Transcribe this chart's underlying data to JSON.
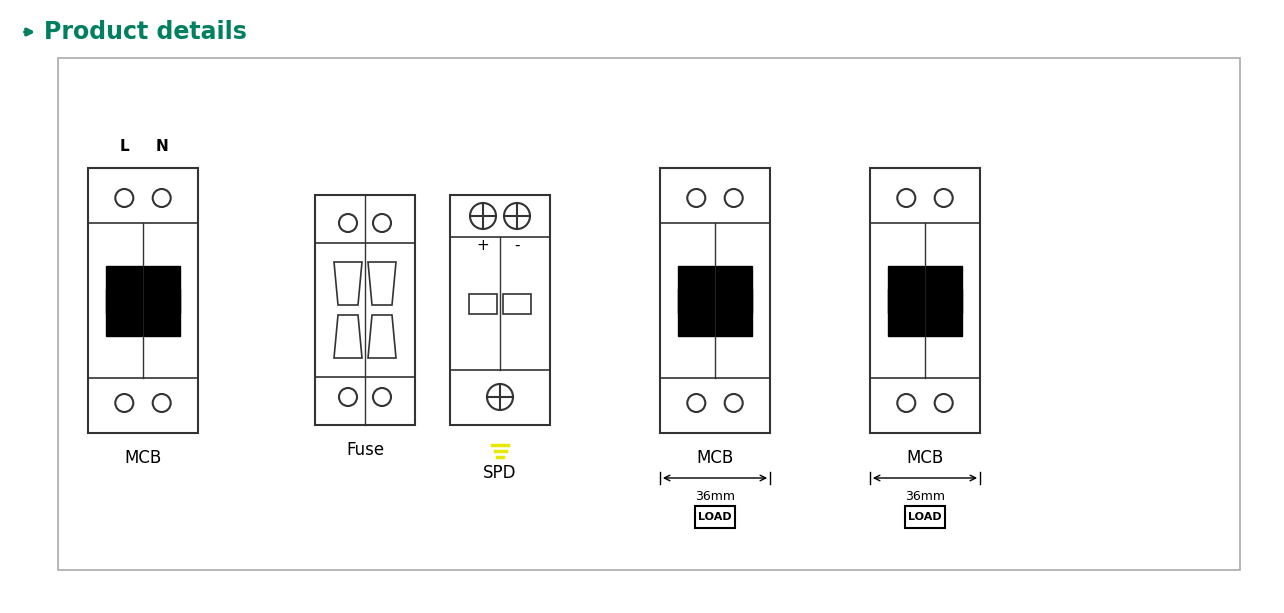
{
  "title": "Product details",
  "title_color": "#008060",
  "bg_color": "#ffffff",
  "wire_red": "#cc0000",
  "wire_blue": "#3399cc",
  "wire_yellow": "#e8e800",
  "component_border": "#333333",
  "labels": {
    "MCB1": "MCB",
    "Fuse": "Fuse",
    "SPD": "SPD",
    "MCB2": "MCB",
    "MCB3": "MCB",
    "L": "L",
    "N": "N",
    "plus": "+",
    "minus": "-",
    "dim1": "36mm",
    "dim2": "36mm",
    "load1": "LOAD",
    "load2": "LOAD"
  }
}
